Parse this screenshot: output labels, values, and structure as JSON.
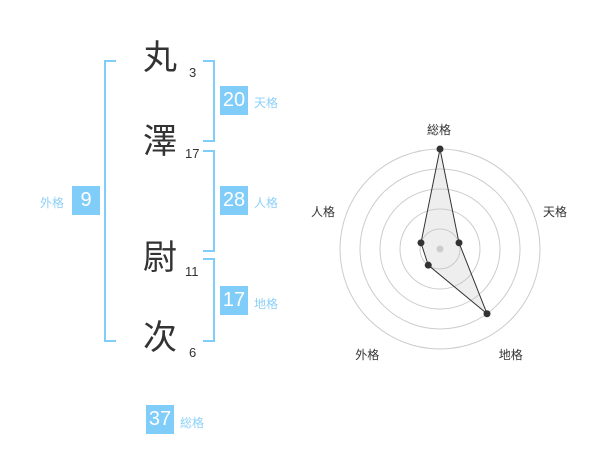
{
  "name_chars": [
    {
      "char": "丸",
      "strokes": "3"
    },
    {
      "char": "澤",
      "strokes": "17"
    },
    {
      "char": "尉",
      "strokes": "11"
    },
    {
      "char": "次",
      "strokes": "6"
    }
  ],
  "fortunes": {
    "tenkaku": {
      "label": "天格",
      "value": "20"
    },
    "jinkaku": {
      "label": "人格",
      "value": "28"
    },
    "chikaku": {
      "label": "地格",
      "value": "17"
    },
    "gaikaku": {
      "label": "外格",
      "value": "9"
    },
    "soukaku": {
      "label": "総格",
      "value": "37"
    }
  },
  "accent_color": "#80cdfa",
  "chart_data": {
    "type": "radar",
    "axes": [
      "総格",
      "天格",
      "地格",
      "外格",
      "人格"
    ],
    "values": [
      5,
      1,
      4,
      1,
      1
    ],
    "rlim": [
      0,
      5
    ],
    "rings": 5
  }
}
